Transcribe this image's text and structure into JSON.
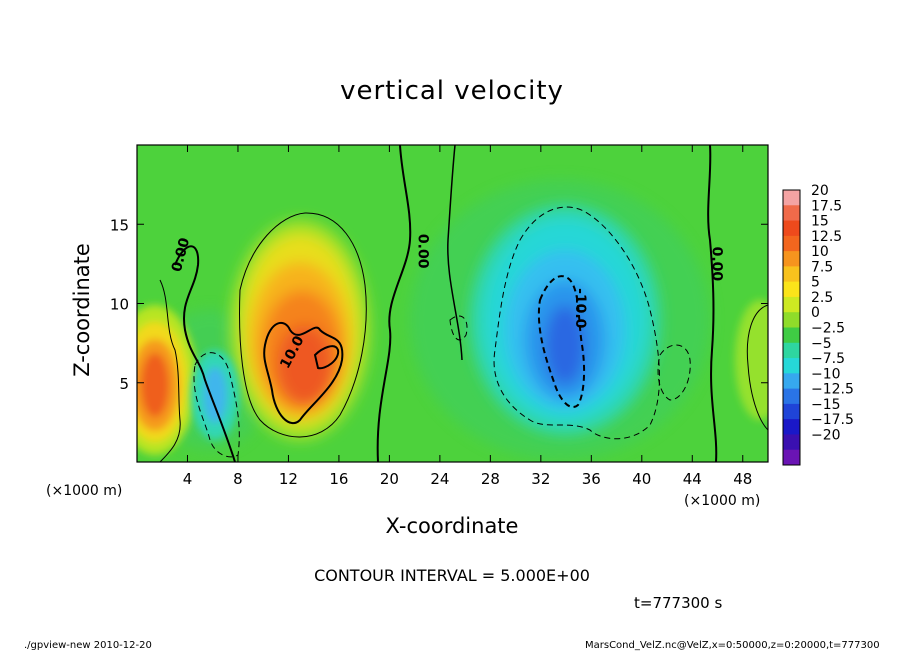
{
  "chart_data": {
    "type": "heatmap",
    "title": "vertical velocity",
    "xlabel": "X-coordinate",
    "ylabel": "Z-coordinate",
    "x_unit_label": "(×1000 m)",
    "xlim": [
      0,
      50
    ],
    "ylim": [
      0,
      20
    ],
    "x_ticks": [
      4,
      8,
      12,
      16,
      20,
      24,
      28,
      32,
      36,
      40,
      44,
      48
    ],
    "y_ticks": [
      5,
      10,
      15
    ],
    "colorbar": {
      "levels": [
        "20",
        "17.5",
        "15",
        "12.5",
        "10",
        "7.5",
        "5",
        "2.5",
        "0",
        "−2.5",
        "−5",
        "−7.5",
        "−10",
        "−12.5",
        "−15",
        "−17.5",
        "−20"
      ],
      "colors": [
        "#f4a3a3",
        "#f06a4a",
        "#ee4a1c",
        "#f3661e",
        "#f6941e",
        "#f8c21d",
        "#fbe41a",
        "#cde922",
        "#8fdc2a",
        "#3fcc44",
        "#2ed6a0",
        "#26d8d8",
        "#36a8ee",
        "#2a74e6",
        "#1f44d8",
        "#1a18c8",
        "#3a10b0",
        "#6a14b4"
      ]
    },
    "features": [
      {
        "type": "updraft",
        "x": 1.5,
        "z": 6.0,
        "w_max": 10
      },
      {
        "type": "updraft",
        "x": 12.5,
        "z": 7.5,
        "w_max": 12.5
      },
      {
        "type": "downdraft",
        "x": 5.5,
        "z": 5.0,
        "w_min": -7.5
      },
      {
        "type": "downdraft",
        "x": 33.5,
        "z": 8.0,
        "w_min": -12.5
      }
    ],
    "contour_labels": [
      "0.00",
      "0.00",
      "0.00",
      "10.0",
      "-10.0"
    ],
    "contour_interval": "CONTOUR INTERVAL = 5.000E+00",
    "time": "t=777300 s"
  },
  "footer": {
    "left": "./gpview-new  2010-12-20",
    "right": "MarsCond_VelZ.nc@VelZ,x=0:50000,z=0:20000,t=777300"
  }
}
